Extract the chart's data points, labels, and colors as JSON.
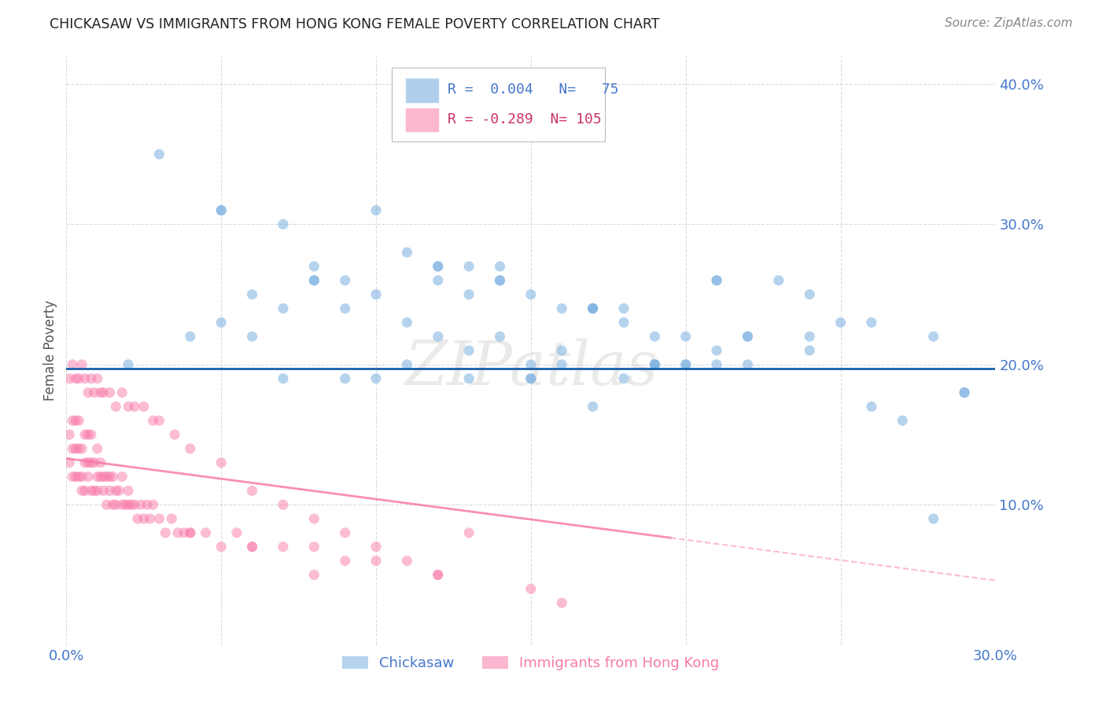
{
  "title": "CHICKASAW VS IMMIGRANTS FROM HONG KONG FEMALE POVERTY CORRELATION CHART",
  "source": "Source: ZipAtlas.com",
  "ylabel": "Female Poverty",
  "watermark": "ZIPatlas",
  "xlim": [
    0.0,
    0.3
  ],
  "ylim": [
    0.0,
    0.42
  ],
  "xticks": [
    0.0,
    0.05,
    0.1,
    0.15,
    0.2,
    0.25,
    0.3
  ],
  "yticks": [
    0.0,
    0.1,
    0.2,
    0.3,
    0.4
  ],
  "background_color": "#ffffff",
  "grid_color": "#cccccc",
  "blue_color": "#7ab0e0",
  "pink_color": "#f87aaa",
  "trendline_blue_color": "#1a5fa8",
  "trendline_pink_color": "#f87aaa",
  "legend_R_blue": "0.004",
  "legend_N_blue": "75",
  "legend_R_pink": "-0.289",
  "legend_N_pink": "105",
  "blue_line_y": 0.197,
  "blue_scatter_x": [
    0.02,
    0.04,
    0.05,
    0.06,
    0.07,
    0.08,
    0.09,
    0.1,
    0.11,
    0.12,
    0.13,
    0.14,
    0.15,
    0.16,
    0.17,
    0.18,
    0.19,
    0.2,
    0.21,
    0.22,
    0.05,
    0.07,
    0.09,
    0.11,
    0.12,
    0.13,
    0.14,
    0.15,
    0.16,
    0.17,
    0.18,
    0.19,
    0.2,
    0.21,
    0.22,
    0.23,
    0.24,
    0.25,
    0.26,
    0.27,
    0.06,
    0.08,
    0.1,
    0.12,
    0.14,
    0.16,
    0.18,
    0.2,
    0.22,
    0.24,
    0.03,
    0.05,
    0.08,
    0.1,
    0.12,
    0.14,
    0.17,
    0.19,
    0.21,
    0.24,
    0.13,
    0.15,
    0.17,
    0.19,
    0.21,
    0.26,
    0.28,
    0.29,
    0.29,
    0.28,
    0.07,
    0.09,
    0.11,
    0.13,
    0.15
  ],
  "blue_scatter_y": [
    0.2,
    0.22,
    0.23,
    0.25,
    0.24,
    0.27,
    0.26,
    0.25,
    0.28,
    0.27,
    0.25,
    0.27,
    0.25,
    0.24,
    0.24,
    0.23,
    0.22,
    0.22,
    0.21,
    0.22,
    0.31,
    0.3,
    0.24,
    0.23,
    0.26,
    0.21,
    0.26,
    0.19,
    0.21,
    0.17,
    0.24,
    0.2,
    0.2,
    0.26,
    0.22,
    0.26,
    0.22,
    0.23,
    0.17,
    0.16,
    0.22,
    0.26,
    0.19,
    0.22,
    0.22,
    0.2,
    0.19,
    0.2,
    0.2,
    0.21,
    0.35,
    0.31,
    0.26,
    0.31,
    0.27,
    0.26,
    0.24,
    0.2,
    0.2,
    0.25,
    0.27,
    0.19,
    0.24,
    0.2,
    0.26,
    0.23,
    0.22,
    0.18,
    0.18,
    0.09,
    0.19,
    0.19,
    0.2,
    0.19,
    0.2
  ],
  "pink_scatter_x": [
    0.001,
    0.001,
    0.002,
    0.002,
    0.002,
    0.003,
    0.003,
    0.003,
    0.004,
    0.004,
    0.004,
    0.005,
    0.005,
    0.005,
    0.006,
    0.006,
    0.006,
    0.007,
    0.007,
    0.007,
    0.008,
    0.008,
    0.008,
    0.009,
    0.009,
    0.01,
    0.01,
    0.01,
    0.011,
    0.011,
    0.012,
    0.012,
    0.013,
    0.013,
    0.014,
    0.014,
    0.015,
    0.015,
    0.016,
    0.016,
    0.017,
    0.018,
    0.018,
    0.019,
    0.02,
    0.02,
    0.021,
    0.022,
    0.023,
    0.024,
    0.025,
    0.026,
    0.027,
    0.028,
    0.03,
    0.032,
    0.034,
    0.036,
    0.038,
    0.04,
    0.045,
    0.05,
    0.055,
    0.06,
    0.07,
    0.08,
    0.09,
    0.1,
    0.11,
    0.12,
    0.001,
    0.002,
    0.003,
    0.004,
    0.005,
    0.006,
    0.007,
    0.008,
    0.009,
    0.01,
    0.011,
    0.012,
    0.014,
    0.016,
    0.018,
    0.02,
    0.022,
    0.025,
    0.028,
    0.03,
    0.035,
    0.04,
    0.05,
    0.06,
    0.07,
    0.08,
    0.09,
    0.1,
    0.12,
    0.15,
    0.13,
    0.16,
    0.04,
    0.06,
    0.08
  ],
  "pink_scatter_y": [
    0.13,
    0.15,
    0.12,
    0.14,
    0.16,
    0.12,
    0.14,
    0.16,
    0.12,
    0.14,
    0.16,
    0.12,
    0.14,
    0.11,
    0.13,
    0.15,
    0.11,
    0.13,
    0.15,
    0.12,
    0.13,
    0.15,
    0.11,
    0.13,
    0.11,
    0.12,
    0.14,
    0.11,
    0.13,
    0.12,
    0.12,
    0.11,
    0.12,
    0.1,
    0.11,
    0.12,
    0.1,
    0.12,
    0.11,
    0.1,
    0.11,
    0.1,
    0.12,
    0.1,
    0.11,
    0.1,
    0.1,
    0.1,
    0.09,
    0.1,
    0.09,
    0.1,
    0.09,
    0.1,
    0.09,
    0.08,
    0.09,
    0.08,
    0.08,
    0.08,
    0.08,
    0.07,
    0.08,
    0.07,
    0.07,
    0.07,
    0.06,
    0.06,
    0.06,
    0.05,
    0.19,
    0.2,
    0.19,
    0.19,
    0.2,
    0.19,
    0.18,
    0.19,
    0.18,
    0.19,
    0.18,
    0.18,
    0.18,
    0.17,
    0.18,
    0.17,
    0.17,
    0.17,
    0.16,
    0.16,
    0.15,
    0.14,
    0.13,
    0.11,
    0.1,
    0.09,
    0.08,
    0.07,
    0.05,
    0.04,
    0.08,
    0.03,
    0.08,
    0.07,
    0.05
  ],
  "title_color": "#222222",
  "source_color": "#888888",
  "axis_label_color": "#555555",
  "tick_label_color": "#4477cc",
  "legend_text_color_blue": "#4477cc",
  "legend_text_color_pink": "#cc3366"
}
